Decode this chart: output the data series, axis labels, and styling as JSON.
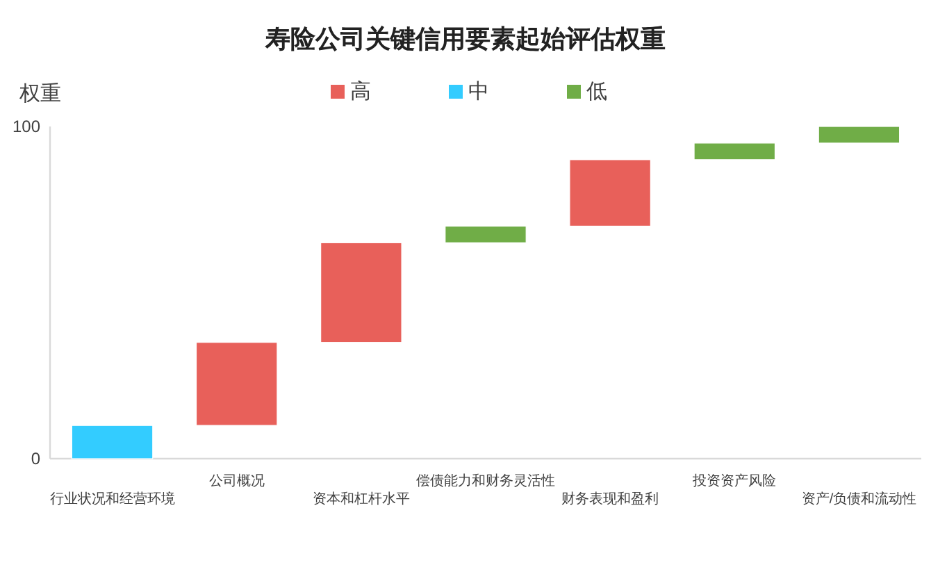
{
  "chart_data": {
    "type": "bar",
    "title": "寿险公司关键信用要素起始评估权重",
    "ylabel": "权重",
    "categories": [
      "行业状况和经营环境",
      "公司概况",
      "资本和杠杆水平",
      "偿债能力和财务灵活性",
      "财务表现和盈利",
      "投资资产风险",
      "资产/负债和流动性"
    ],
    "series": [
      {
        "name": "高",
        "color": "#e8605a",
        "base": [
          null,
          10,
          35,
          null,
          70,
          null,
          null
        ],
        "values": [
          null,
          25,
          30,
          null,
          20,
          null,
          null
        ]
      },
      {
        "name": "中",
        "color": "#33ccff",
        "base": [
          0,
          null,
          null,
          null,
          null,
          null,
          null
        ],
        "values": [
          10,
          null,
          null,
          null,
          null,
          null,
          null
        ]
      },
      {
        "name": "低",
        "color": "#70ad47",
        "base": [
          null,
          null,
          null,
          65,
          null,
          90,
          95
        ],
        "values": [
          null,
          null,
          null,
          5,
          null,
          5,
          5
        ]
      }
    ],
    "ylim": [
      0,
      100
    ],
    "yticks": [
      0,
      100
    ],
    "grid": false,
    "legend": "top"
  }
}
